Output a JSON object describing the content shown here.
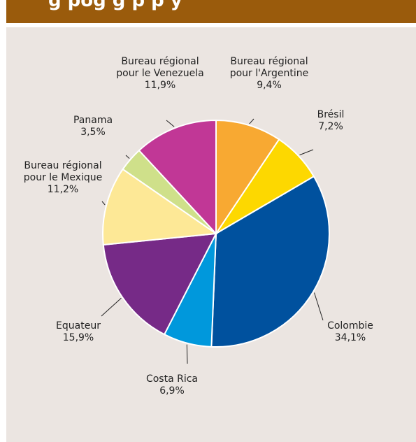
{
  "header": {
    "title_partial": "g  pog  g    p  p  y"
  },
  "chart_data": {
    "type": "pie",
    "title": "",
    "slices": [
      {
        "label_lines": [
          "Bureau régional",
          "pour l'Argentine"
        ],
        "value": 9.4,
        "value_text": "9,4%",
        "color": "#f8a932"
      },
      {
        "label_lines": [
          "Brésil"
        ],
        "value": 7.2,
        "value_text": "7,2%",
        "color": "#fdd800"
      },
      {
        "label_lines": [
          "Colombie"
        ],
        "value": 34.1,
        "value_text": "34,1%",
        "color": "#00519e"
      },
      {
        "label_lines": [
          "Costa Rica"
        ],
        "value": 6.9,
        "value_text": "6,9%",
        "color": "#0098dc"
      },
      {
        "label_lines": [
          "Equateur"
        ],
        "value": 15.9,
        "value_text": "15,9%",
        "color": "#762a87"
      },
      {
        "label_lines": [
          "Bureau régional",
          "pour le Mexique"
        ],
        "value": 11.2,
        "value_text": "11,2%",
        "color": "#fde896"
      },
      {
        "label_lines": [
          "Panama"
        ],
        "value": 3.5,
        "value_text": "3,5%",
        "color": "#cfe08a"
      },
      {
        "label_lines": [
          "Bureau régional",
          "pour le Venezuela"
        ],
        "value": 11.9,
        "value_text": "11,9%",
        "color": "#c13796"
      }
    ]
  }
}
